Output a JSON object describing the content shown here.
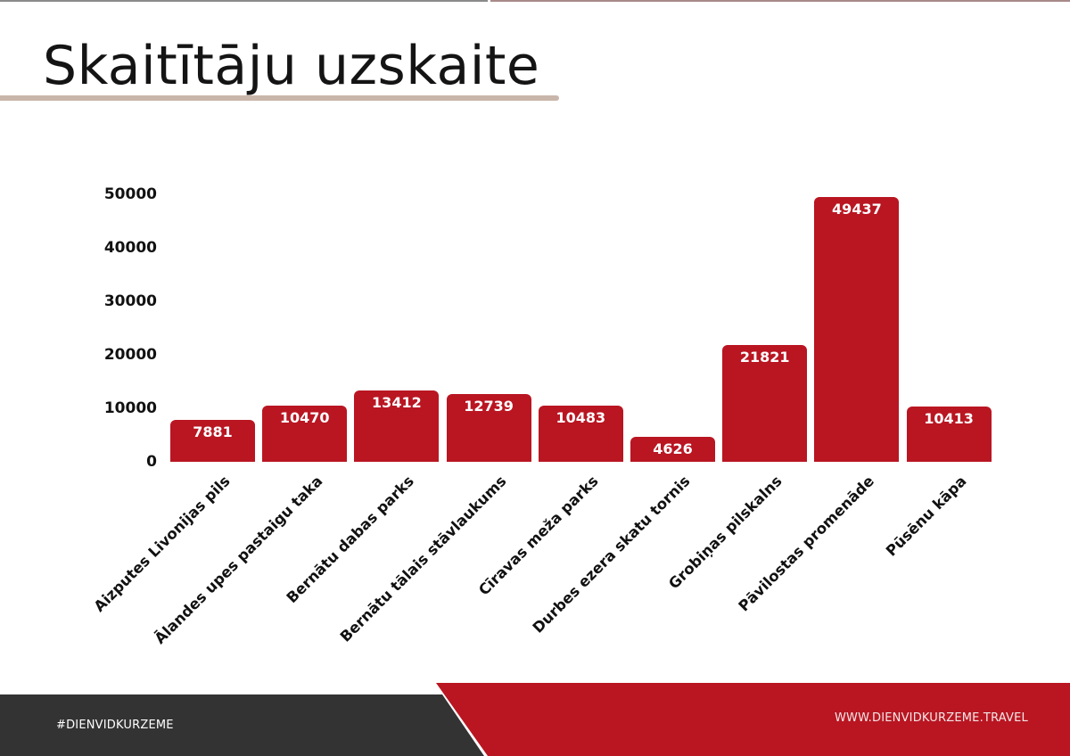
{
  "page": {
    "title": "Skaitītāju uzskaite"
  },
  "footer": {
    "hashtag": "#DIENVIDKURZEME",
    "url": "WWW.DIENVIDKURZEME.TRAVEL"
  },
  "colors": {
    "bar": "#b91622",
    "footer_red": "#b91622",
    "footer_dark": "#333333",
    "title_underline": "#c9b6aa"
  },
  "chart_data": {
    "type": "bar",
    "title": "Skaitītāju uzskaite",
    "xlabel": "",
    "ylabel": "",
    "ylim": [
      0,
      50000
    ],
    "yticks": [
      "0",
      "10000",
      "20000",
      "30000",
      "40000",
      "50000"
    ],
    "grid": false,
    "legend": null,
    "data_labels": true,
    "categories": [
      "Aizputes Livonijas pils",
      "Ālandes upes pastaigu taka",
      "Bernātu dabas parks",
      "Bernātu tālais stāvlaukums",
      "Cīravas meža parks",
      "Durbes ezera skatu tornis",
      "Grobiņas pilskalns",
      "Pāvilostas promenāde",
      "Pūsēnu kāpa"
    ],
    "values": [
      7881,
      10470,
      13412,
      12739,
      10483,
      4626,
      21821,
      49437,
      10413
    ]
  }
}
